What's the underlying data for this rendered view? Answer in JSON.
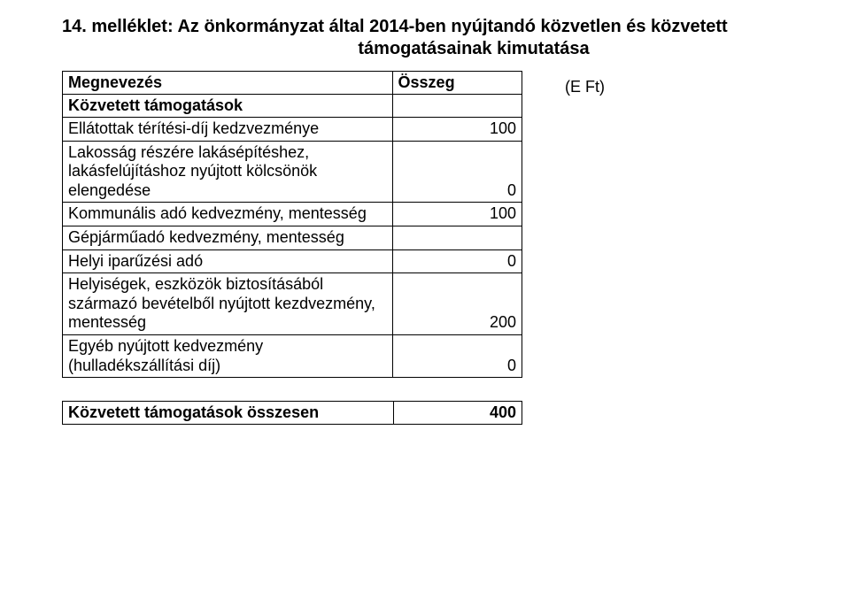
{
  "title_line1": "14. melléklet: Az önkormányzat által 2014-ben nyújtandó közvetlen és közvetett",
  "title_line2": "támogatásainak kimutatása",
  "unit_label": "(E Ft)",
  "header": {
    "name": "Megnevezés",
    "value": "Összeg"
  },
  "subheader": "Közvetett támogatások",
  "rows": [
    {
      "label": "Ellátottak térítési-díj kedzvezménye",
      "value": "100"
    },
    {
      "label": "Lakosság részére lakásépítéshez, lakásfelújításhoz nyújtott kölcsönök elengedése",
      "value": "0"
    },
    {
      "label": "Kommunális adó kedvezmény, mentesség",
      "value": "100"
    },
    {
      "label": "Gépjárműadó kedvezmény, mentesség",
      "value": ""
    },
    {
      "label": "Helyi iparűzési adó",
      "value": "0"
    },
    {
      "label": "Helyiségek, eszközök biztosításából származó bevételből nyújtott kezdvezmény, mentesség",
      "value": "200"
    },
    {
      "label": "Egyéb nyújtott kedvezmény (hulladékszállítási díj)",
      "value": "0"
    }
  ],
  "footer": {
    "label": "Közvetett támogatások összesen",
    "value": "400"
  }
}
